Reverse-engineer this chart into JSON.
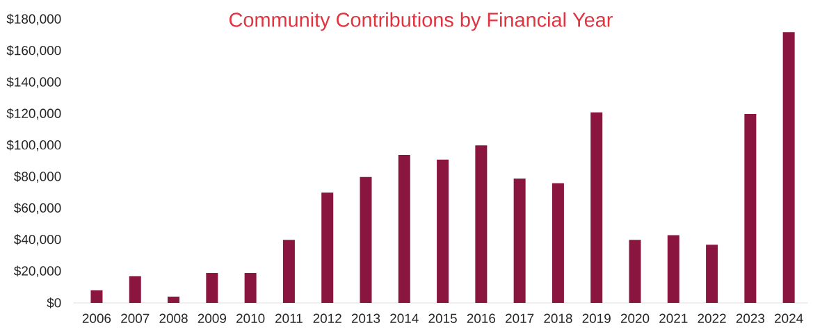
{
  "chart_data": {
    "type": "bar",
    "title": "Community Contributions by Financial Year",
    "categories": [
      "2006",
      "2007",
      "2008",
      "2009",
      "2010",
      "2011",
      "2012",
      "2013",
      "2014",
      "2015",
      "2016",
      "2017",
      "2018",
      "2019",
      "2020",
      "2021",
      "2022",
      "2023",
      "2024"
    ],
    "values": [
      8000,
      17000,
      4000,
      19000,
      19000,
      40000,
      70000,
      80000,
      94000,
      91000,
      100000,
      79000,
      76000,
      121000,
      40000,
      43000,
      37000,
      120000,
      172000
    ],
    "color": "#8a1640",
    "ylim": [
      0,
      180000
    ],
    "yticks": [
      {
        "value": 0,
        "label": "$0"
      },
      {
        "value": 20000,
        "label": "$20,000"
      },
      {
        "value": 40000,
        "label": "$40,000"
      },
      {
        "value": 60000,
        "label": "$60,000"
      },
      {
        "value": 80000,
        "label": "$80,000"
      },
      {
        "value": 100000,
        "label": "$100,000"
      },
      {
        "value": 120000,
        "label": "$120,000"
      },
      {
        "value": 140000,
        "label": "$140,000"
      },
      {
        "value": 160000,
        "label": "$160,000"
      },
      {
        "value": 180000,
        "label": "$180,000"
      }
    ]
  }
}
